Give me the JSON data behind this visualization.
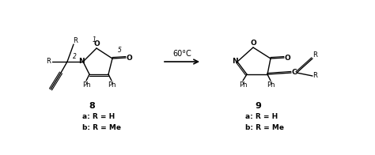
{
  "bg_color": "#ffffff",
  "arrow_label": "60°C",
  "compound8_label": "8",
  "compound9_label": "9",
  "label_a": "a: R = H",
  "label_b": "b: R = Me",
  "num1": "1",
  "num2": "2",
  "num5": "5"
}
